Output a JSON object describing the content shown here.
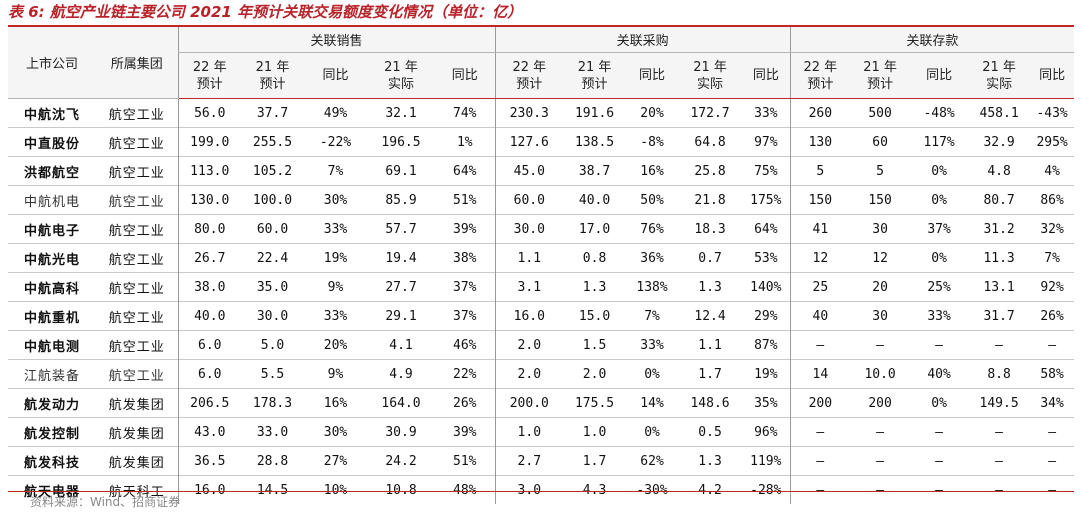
{
  "title": "表 6:  航空产业链主要公司 2021 年预计关联交易额度变化情况（单位：亿）",
  "source": "资料来源：Wind、招商证券",
  "header": {
    "company": "上市公司",
    "group": "所属集团",
    "groups": [
      "关联销售",
      "关联采购",
      "关联存款"
    ],
    "sub": [
      [
        "22 年",
        "预计"
      ],
      [
        "21 年",
        "预计"
      ],
      [
        "同比",
        ""
      ],
      [
        "21 年",
        "实际"
      ],
      [
        "同比",
        ""
      ]
    ]
  },
  "rows": [
    {
      "company": "中航沈飞",
      "group": "航空工业",
      "light": false,
      "values": [
        "56.0",
        "37.7",
        "49%",
        "32.1",
        "74%",
        "230.3",
        "191.6",
        "20%",
        "172.7",
        "33%",
        "260",
        "500",
        "-48%",
        "458.1",
        "-43%"
      ]
    },
    {
      "company": "中直股份",
      "group": "航空工业",
      "light": false,
      "values": [
        "199.0",
        "255.5",
        "-22%",
        "196.5",
        "1%",
        "127.6",
        "138.5",
        "-8%",
        "64.8",
        "97%",
        "130",
        "60",
        "117%",
        "32.9",
        "295%"
      ]
    },
    {
      "company": "洪都航空",
      "group": "航空工业",
      "light": false,
      "values": [
        "113.0",
        "105.2",
        "7%",
        "69.1",
        "64%",
        "45.0",
        "38.7",
        "16%",
        "25.8",
        "75%",
        "5",
        "5",
        "0%",
        "4.8",
        "4%"
      ]
    },
    {
      "company": "中航机电",
      "group": "航空工业",
      "light": true,
      "values": [
        "130.0",
        "100.0",
        "30%",
        "85.9",
        "51%",
        "60.0",
        "40.0",
        "50%",
        "21.8",
        "175%",
        "150",
        "150",
        "0%",
        "80.7",
        "86%"
      ]
    },
    {
      "company": "中航电子",
      "group": "航空工业",
      "light": false,
      "values": [
        "80.0",
        "60.0",
        "33%",
        "57.7",
        "39%",
        "30.0",
        "17.0",
        "76%",
        "18.3",
        "64%",
        "41",
        "30",
        "37%",
        "31.2",
        "32%"
      ]
    },
    {
      "company": "中航光电",
      "group": "航空工业",
      "light": false,
      "values": [
        "26.7",
        "22.4",
        "19%",
        "19.4",
        "38%",
        "1.1",
        "0.8",
        "36%",
        "0.7",
        "53%",
        "12",
        "12",
        "0%",
        "11.3",
        "7%"
      ]
    },
    {
      "company": "中航高科",
      "group": "航空工业",
      "light": false,
      "values": [
        "38.0",
        "35.0",
        "9%",
        "27.7",
        "37%",
        "3.1",
        "1.3",
        "138%",
        "1.3",
        "140%",
        "25",
        "20",
        "25%",
        "13.1",
        "92%"
      ]
    },
    {
      "company": "中航重机",
      "group": "航空工业",
      "light": false,
      "values": [
        "40.0",
        "30.0",
        "33%",
        "29.1",
        "37%",
        "16.0",
        "15.0",
        "7%",
        "12.4",
        "29%",
        "40",
        "30",
        "33%",
        "31.7",
        "26%"
      ]
    },
    {
      "company": "中航电测",
      "group": "航空工业",
      "light": false,
      "values": [
        "6.0",
        "5.0",
        "20%",
        "4.1",
        "46%",
        "2.0",
        "1.5",
        "33%",
        "1.1",
        "87%",
        "—",
        "—",
        "—",
        "—",
        "—"
      ]
    },
    {
      "company": "江航装备",
      "group": "航空工业",
      "light": true,
      "values": [
        "6.0",
        "5.5",
        "9%",
        "4.9",
        "22%",
        "2.0",
        "2.0",
        "0%",
        "1.7",
        "19%",
        "14",
        "10.0",
        "40%",
        "8.8",
        "58%"
      ]
    },
    {
      "company": "航发动力",
      "group": "航发集团",
      "light": false,
      "values": [
        "206.5",
        "178.3",
        "16%",
        "164.0",
        "26%",
        "200.0",
        "175.5",
        "14%",
        "148.6",
        "35%",
        "200",
        "200",
        "0%",
        "149.5",
        "34%"
      ]
    },
    {
      "company": "航发控制",
      "group": "航发集团",
      "light": false,
      "values": [
        "43.0",
        "33.0",
        "30%",
        "30.9",
        "39%",
        "1.0",
        "1.0",
        "0%",
        "0.5",
        "96%",
        "—",
        "—",
        "—",
        "—",
        "—"
      ]
    },
    {
      "company": "航发科技",
      "group": "航发集团",
      "light": false,
      "values": [
        "36.5",
        "28.8",
        "27%",
        "24.2",
        "51%",
        "2.7",
        "1.7",
        "62%",
        "1.3",
        "119%",
        "—",
        "—",
        "—",
        "—",
        "—"
      ]
    },
    {
      "company": "航天电器",
      "group": "航天科工",
      "light": false,
      "values": [
        "16.0",
        "14.5",
        "10%",
        "10.8",
        "48%",
        "3.0",
        "4.3",
        "-30%",
        "4.2",
        "-28%",
        "—",
        "—",
        "—",
        "—",
        "—"
      ]
    }
  ]
}
